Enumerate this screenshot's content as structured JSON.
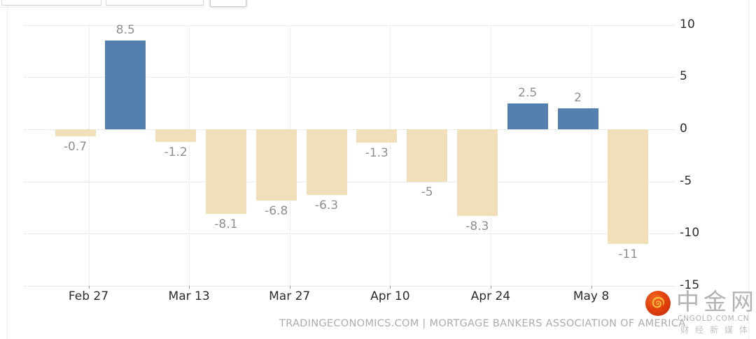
{
  "toolbar": {
    "input_left_value": "",
    "input_right_value": "",
    "button_label": ""
  },
  "chart_data": {
    "type": "bar",
    "title": "",
    "values": [
      -0.7,
      8.5,
      -1.2,
      -8.1,
      -6.8,
      -6.3,
      -1.3,
      -5,
      -8.3,
      2.5,
      2,
      -11
    ],
    "value_labels": [
      "-0.7",
      "8.5",
      "-1.2",
      "-8.1",
      "-6.8",
      "-6.3",
      "-1.3",
      "-5",
      "-8.3",
      "2.5",
      "2",
      "-11"
    ],
    "x_tick_labels": [
      "Feb 27",
      "Mar 13",
      "Mar 27",
      "Apr 10",
      "Apr 24",
      "May 8"
    ],
    "y_ticks": [
      10,
      5,
      0,
      -5,
      -10,
      -15
    ],
    "ylim": [
      -15,
      10
    ],
    "grid": "dotted",
    "legend": "none",
    "colors": {
      "positive_bar": "#5380af",
      "negative_bar": "#f0dfb8",
      "value_label": "#8f8f8f",
      "axis_label": "#2b2b2b",
      "gridline": "#dcdcdc"
    }
  },
  "watermark": {
    "text": "TRADINGECONOMICS.COM | MORTGAGE BANKERS ASSOCIATION OF AMERICA"
  },
  "branding": {
    "logo": "cngold-cloud-logo",
    "name": "中金网",
    "domain": "CNGOLD.COM.CN",
    "tagline": "财经新媒体"
  }
}
